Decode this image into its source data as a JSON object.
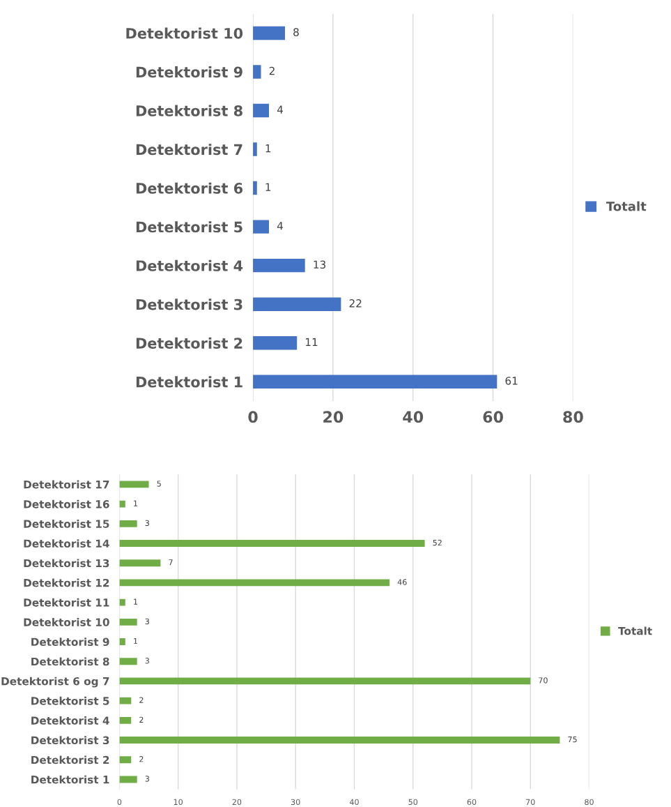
{
  "chart_data": [
    {
      "type": "bar",
      "orientation": "horizontal",
      "categories": [
        "Detektorist 10",
        "Detektorist 9",
        "Detektorist 8",
        "Detektorist 7",
        "Detektorist 6",
        "Detektorist 5",
        "Detektorist 4",
        "Detektorist 3",
        "Detektorist 2",
        "Detektorist 1"
      ],
      "series": [
        {
          "name": "Totalt",
          "color": "#4472c4",
          "values": [
            8,
            2,
            4,
            1,
            1,
            4,
            13,
            22,
            11,
            61
          ]
        }
      ],
      "xlim": [
        0,
        80
      ],
      "xticks": [
        0,
        20,
        40,
        60,
        80
      ],
      "grid": "x",
      "legend": "right",
      "data_labels": true
    },
    {
      "type": "bar",
      "orientation": "horizontal",
      "categories": [
        "Detektorist 17",
        "Detektorist 16",
        "Detektorist 15",
        "Detektorist 14",
        "Detektorist 13",
        "Detektorist 12",
        "Detektorist 11",
        "Detektorist 10",
        "Detektorist 9",
        "Detektorist 8",
        "Detektorist 6 og 7",
        "Detektorist 5",
        "Detektorist 4",
        "Detektorist 3",
        "Detektorist 2",
        "Detektorist 1"
      ],
      "series": [
        {
          "name": "Totalt",
          "color": "#70ad47",
          "values": [
            5,
            1,
            3,
            52,
            7,
            46,
            1,
            3,
            1,
            3,
            70,
            2,
            2,
            75,
            2,
            3
          ]
        }
      ],
      "xlim": [
        0,
        80
      ],
      "xticks": [
        0,
        10,
        20,
        30,
        40,
        50,
        60,
        70,
        80
      ],
      "grid": "x",
      "legend": "right",
      "data_labels": true
    }
  ]
}
